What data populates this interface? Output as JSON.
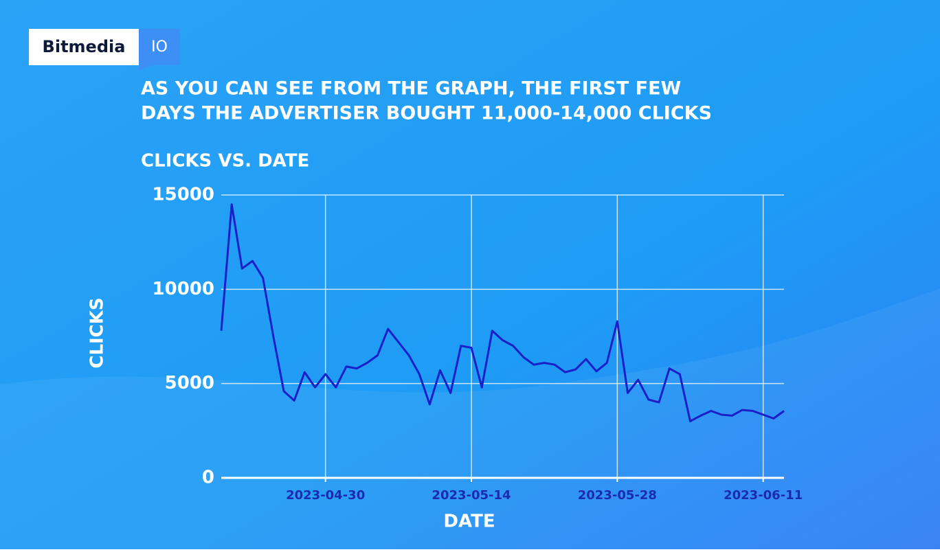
{
  "logo": {
    "brand": "Bitmedia",
    "suffix": "IO"
  },
  "headline": [
    "AS YOU CAN SEE FROM THE GRAPH, THE FIRST FEW",
    "DAYS THE ADVERTISER BOUGHT 11,000-14,000 CLICKS"
  ],
  "chart_data": {
    "type": "line",
    "title": "CLICKS VS. DATE",
    "x_label": "DATE",
    "y_label": "CLICKS",
    "x": [
      "2023-04-20",
      "2023-04-21",
      "2023-04-22",
      "2023-04-23",
      "2023-04-24",
      "2023-04-25",
      "2023-04-26",
      "2023-04-27",
      "2023-04-28",
      "2023-04-29",
      "2023-04-30",
      "2023-05-01",
      "2023-05-02",
      "2023-05-03",
      "2023-05-04",
      "2023-05-05",
      "2023-05-06",
      "2023-05-07",
      "2023-05-08",
      "2023-05-09",
      "2023-05-10",
      "2023-05-11",
      "2023-05-12",
      "2023-05-13",
      "2023-05-14",
      "2023-05-15",
      "2023-05-16",
      "2023-05-17",
      "2023-05-18",
      "2023-05-19",
      "2023-05-20",
      "2023-05-21",
      "2023-05-22",
      "2023-05-23",
      "2023-05-24",
      "2023-05-25",
      "2023-05-26",
      "2023-05-27",
      "2023-05-28",
      "2023-05-29",
      "2023-05-30",
      "2023-05-31",
      "2023-06-01",
      "2023-06-02",
      "2023-06-03",
      "2023-06-04",
      "2023-06-05",
      "2023-06-06",
      "2023-06-07",
      "2023-06-08",
      "2023-06-09",
      "2023-06-10",
      "2023-06-11",
      "2023-06-12",
      "2023-06-13"
    ],
    "values": [
      7800,
      14500,
      11100,
      11500,
      10600,
      7500,
      4600,
      4100,
      5600,
      4800,
      5500,
      4800,
      5900,
      5800,
      6100,
      6500,
      7900,
      7200,
      6500,
      5500,
      3900,
      5700,
      4500,
      7000,
      6900,
      4800,
      7800,
      7300,
      7000,
      6400,
      6000,
      6100,
      6000,
      5600,
      5750,
      6300,
      5650,
      6100,
      8300,
      4500,
      5200,
      4150,
      4000,
      5800,
      5500,
      3000,
      3300,
      3550,
      3350,
      3300,
      3600,
      3550,
      3350,
      3150,
      3550
    ],
    "color": "#1a1fc8",
    "xlim": [
      "2023-04-20",
      "2023-06-13"
    ],
    "xticks": [
      "2023-04-30",
      "2023-05-14",
      "2023-05-28",
      "2023-06-11"
    ],
    "ylim": [
      0,
      15000
    ],
    "yticks": [
      0,
      5000,
      10000,
      15000
    ],
    "grid": true
  }
}
